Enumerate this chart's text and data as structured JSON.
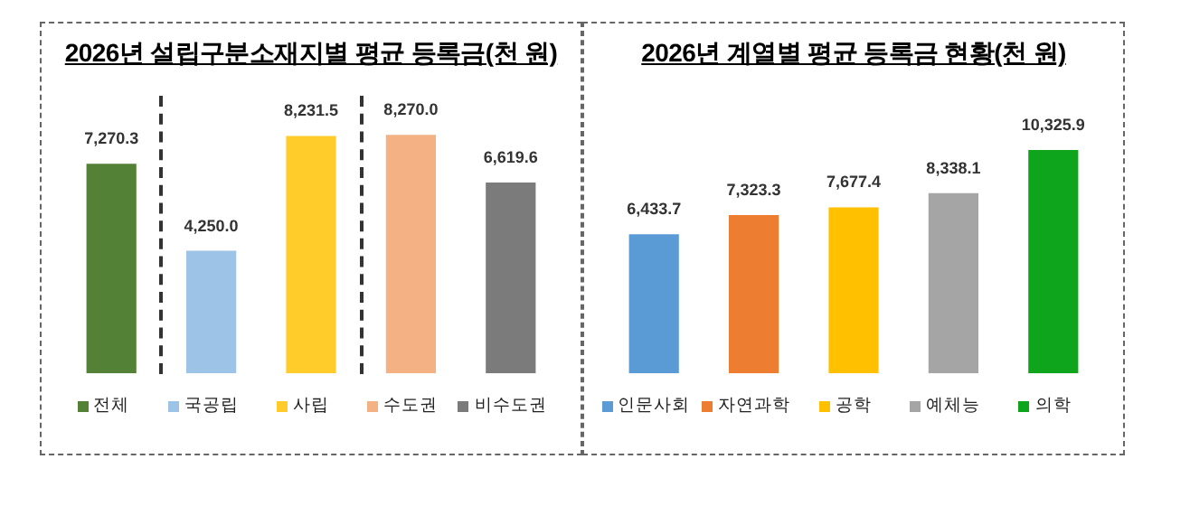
{
  "chart_data": [
    {
      "type": "bar",
      "title": "2026년 설립구분소재지별 평균 등록금(천 원)",
      "categories": [
        "전체",
        "국공립",
        "사립",
        "수도권",
        "비수도권"
      ],
      "values": [
        7270.3,
        4250.0,
        8231.5,
        8270.0,
        6619.6
      ],
      "colors": [
        "#538135",
        "#9dc3e6",
        "#ffcc29",
        "#f4b183",
        "#7b7b7b"
      ],
      "value_labels": [
        "7,270.3",
        "4,250.0",
        "8,231.5",
        "8,270.0",
        "6,619.6"
      ],
      "tick_labels": "x",
      "grid": false
    },
    {
      "type": "bar",
      "title": "2026년 계열별 평균 등록금 현황(천 원)",
      "categories": [
        "인문사회",
        "자연과학",
        "공학",
        "예체능",
        "의학"
      ],
      "values": [
        6433.7,
        7323.3,
        7677.4,
        8338.1,
        10325.9
      ],
      "colors": [
        "#5b9bd5",
        "#ed7d31",
        "#ffc000",
        "#a5a5a5",
        "#0ea41b"
      ],
      "value_labels": [
        "6,433.7",
        "7,323.3",
        "7,677.4",
        "8,338.1",
        "10,325.9"
      ],
      "tick_labels": "x",
      "grid": false
    }
  ]
}
